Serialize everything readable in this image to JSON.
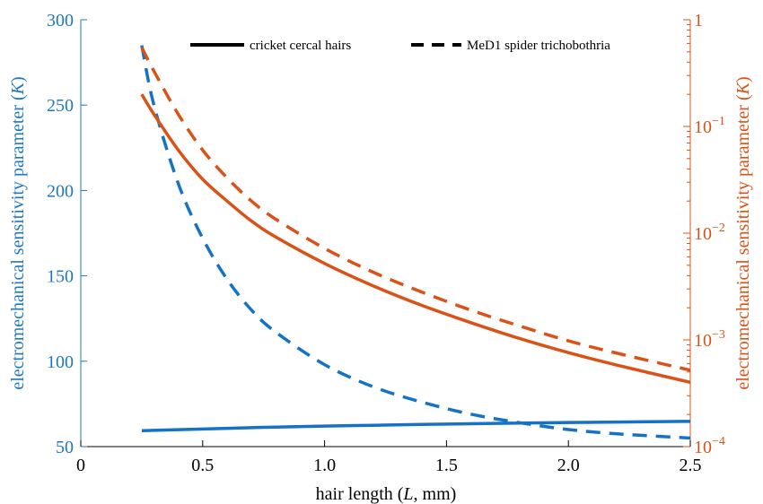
{
  "chart_data": {
    "type": "line",
    "xlabel": "hair length (L, mm)",
    "ylabel_left": "electromechanical sensitivity parameter (K)",
    "ylabel_right": "electromechanical sensitivity parameter (K)",
    "xlim": [
      0,
      2.5
    ],
    "ylim_left": [
      50,
      300
    ],
    "ylim_right": [
      0.0001,
      1
    ],
    "yscale_right": "log",
    "x_ticks": [
      "0",
      "0.5",
      "1.0",
      "1.5",
      "2.0",
      "2.5"
    ],
    "y_ticks_left": [
      "50",
      "100",
      "150",
      "200",
      "250",
      "300"
    ],
    "y_ticks_right": [
      {
        "base": "10",
        "exp": "−4",
        "plain": ""
      },
      {
        "base": "10",
        "exp": "−3",
        "plain": ""
      },
      {
        "base": "10",
        "exp": "−2",
        "plain": ""
      },
      {
        "base": "10",
        "exp": "−1",
        "plain": ""
      },
      {
        "base": "",
        "exp": "",
        "plain": "1"
      }
    ],
    "legend": [
      {
        "label": "cricket cercal hairs",
        "style": "solid"
      },
      {
        "label": "MeD1 spider trichobothria",
        "style": "dashed"
      }
    ],
    "legend_position": "top",
    "colors": {
      "left_axis": "#1f77c0",
      "right_axis": "#d95319"
    },
    "x": [
      0.25,
      0.3,
      0.4,
      0.5,
      0.6,
      0.7,
      0.8,
      1.0,
      1.2,
      1.4,
      1.6,
      1.8,
      2.0,
      2.2,
      2.5
    ],
    "series": [
      {
        "label": "cricket cercal hairs",
        "axis": "left",
        "style": "solid",
        "color": "#1672c4",
        "values": [
          59.3,
          59.5,
          59.9,
          60.3,
          60.7,
          61.1,
          61.4,
          62.0,
          62.5,
          63.0,
          63.4,
          63.8,
          64.1,
          64.4,
          64.8
        ]
      },
      {
        "label": "MeD1 spider trichobothria",
        "axis": "left",
        "style": "dashed",
        "color": "#1672c4",
        "values": [
          285,
          250,
          204,
          172,
          148,
          130,
          117,
          98,
          85,
          76,
          69,
          64,
          60,
          57.5,
          55
        ]
      },
      {
        "label": "cricket cercal hairs",
        "axis": "right",
        "style": "solid",
        "color": "#d95319",
        "values": [
          0.2,
          0.13,
          0.06,
          0.032,
          0.02,
          0.013,
          0.0092,
          0.0052,
          0.0032,
          0.0021,
          0.00145,
          0.00103,
          0.00076,
          0.00058,
          0.0004
        ]
      },
      {
        "label": "MeD1 spider trichobothria",
        "axis": "right",
        "style": "dashed",
        "color": "#d95319",
        "values": [
          0.55,
          0.33,
          0.13,
          0.06,
          0.033,
          0.02,
          0.0135,
          0.0072,
          0.0043,
          0.0028,
          0.0019,
          0.00135,
          0.00098,
          0.00075,
          0.00052
        ]
      }
    ]
  }
}
